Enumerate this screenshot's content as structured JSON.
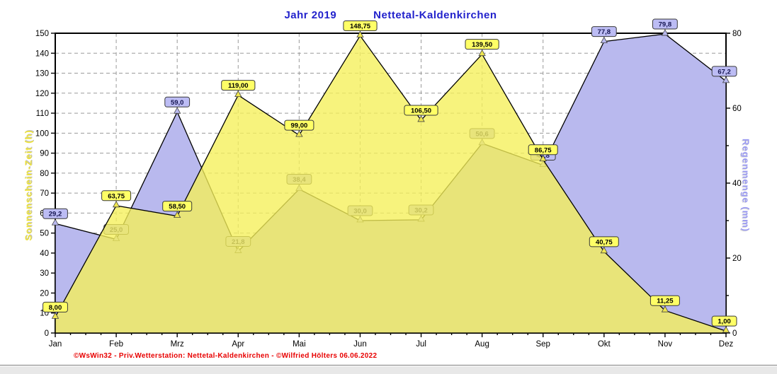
{
  "title": {
    "year": "Jahr  2019",
    "station": "Nettetal-Kaldenkirchen"
  },
  "footer": {
    "credit": "©WsWin32  -  Priv.Wetterstation: Nettetal-Kaldenkirchen  -  ©Wilfried Hölters  06.06.2022"
  },
  "chart_data": {
    "type": "area",
    "title": "Jahr 2019 — Nettetal-Kaldenkirchen",
    "categories": [
      "Jan",
      "Feb",
      "Mrz",
      "Apr",
      "Mai",
      "Jun",
      "Jul",
      "Aug",
      "Sep",
      "Okt",
      "Nov",
      "Dez"
    ],
    "series": [
      {
        "name": "Sonnenschein-Zeit (h)",
        "axis": "left",
        "unit": "h",
        "color": "#f5ef58",
        "values": [
          8.0,
          63.75,
          58.5,
          119.0,
          99.0,
          148.75,
          106.5,
          139.5,
          86.75,
          40.75,
          11.25,
          1.0
        ],
        "labels": [
          "8,00",
          "63,75",
          "58,50",
          "119,00",
          "99,00",
          "148,75",
          "106,50",
          "139,50",
          "86,75",
          "40,75",
          "11,25",
          "1,00"
        ]
      },
      {
        "name": "Regenmenge (mm)",
        "axis": "right",
        "unit": "mm",
        "color": "#b9b9ee",
        "values": [
          29.2,
          25.0,
          59.0,
          21.8,
          38.4,
          30.0,
          30.2,
          50.6,
          44.8,
          77.8,
          79.8,
          67.2
        ],
        "labels": [
          "29,2",
          "25,0",
          "59,0",
          "21,8",
          "38,4",
          "30,0",
          "30,2",
          "50,6",
          "44,8",
          "77,8",
          "79,8",
          "67,2"
        ]
      }
    ],
    "left_axis": {
      "title": "Sonnenschein-Zeit  (h)",
      "min": 0,
      "max": 150,
      "step": 10
    },
    "right_axis": {
      "title": "Regenmenge  (mm)",
      "min": 0,
      "max": 80,
      "step": 20,
      "minor_step": 10
    },
    "grid": true,
    "legend_position": "none"
  },
  "colors": {
    "title": "#2222cc",
    "left_axis_title": "#ede23c",
    "right_axis_title": "#9a9af2",
    "footer_text": "#e80000",
    "sunshine_fill": "#f5ef58",
    "rain_fill": "#b9b9ee",
    "grid": "#9a9a9a",
    "label_yellow_bg": "#ffff66",
    "label_blue_bg": "#bcbcf4"
  }
}
